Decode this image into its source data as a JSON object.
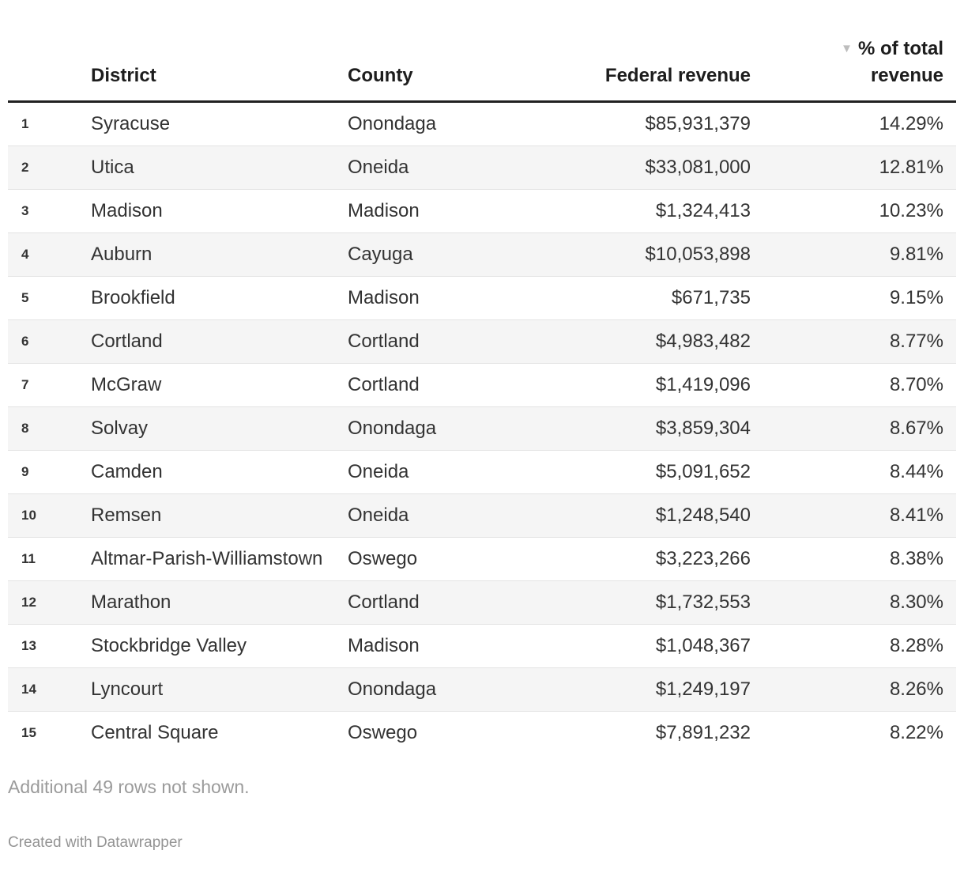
{
  "chart_data": {
    "type": "table",
    "columns": [
      "District",
      "County",
      "Federal revenue",
      "% of total revenue"
    ],
    "sort": {
      "column": "% of total revenue",
      "direction": "descending"
    },
    "rows": [
      {
        "rank": "1",
        "district": "Syracuse",
        "county": "Onondaga",
        "federal_revenue": "$85,931,379",
        "pct_of_total_revenue": "14.29%"
      },
      {
        "rank": "2",
        "district": "Utica",
        "county": "Oneida",
        "federal_revenue": "$33,081,000",
        "pct_of_total_revenue": "12.81%"
      },
      {
        "rank": "3",
        "district": "Madison",
        "county": "Madison",
        "federal_revenue": "$1,324,413",
        "pct_of_total_revenue": "10.23%"
      },
      {
        "rank": "4",
        "district": "Auburn",
        "county": "Cayuga",
        "federal_revenue": "$10,053,898",
        "pct_of_total_revenue": "9.81%"
      },
      {
        "rank": "5",
        "district": "Brookfield",
        "county": "Madison",
        "federal_revenue": "$671,735",
        "pct_of_total_revenue": "9.15%"
      },
      {
        "rank": "6",
        "district": "Cortland",
        "county": "Cortland",
        "federal_revenue": "$4,983,482",
        "pct_of_total_revenue": "8.77%"
      },
      {
        "rank": "7",
        "district": "McGraw",
        "county": "Cortland",
        "federal_revenue": "$1,419,096",
        "pct_of_total_revenue": "8.70%"
      },
      {
        "rank": "8",
        "district": "Solvay",
        "county": "Onondaga",
        "federal_revenue": "$3,859,304",
        "pct_of_total_revenue": "8.67%"
      },
      {
        "rank": "9",
        "district": "Camden",
        "county": "Oneida",
        "federal_revenue": "$5,091,652",
        "pct_of_total_revenue": "8.44%"
      },
      {
        "rank": "10",
        "district": "Remsen",
        "county": "Oneida",
        "federal_revenue": "$1,248,540",
        "pct_of_total_revenue": "8.41%"
      },
      {
        "rank": "11",
        "district": "Altmar-Parish-Williamstown",
        "county": "Oswego",
        "federal_revenue": "$3,223,266",
        "pct_of_total_revenue": "8.38%"
      },
      {
        "rank": "12",
        "district": "Marathon",
        "county": "Cortland",
        "federal_revenue": "$1,732,553",
        "pct_of_total_revenue": "8.30%"
      },
      {
        "rank": "13",
        "district": "Stockbridge Valley",
        "county": "Madison",
        "federal_revenue": "$1,048,367",
        "pct_of_total_revenue": "8.28%"
      },
      {
        "rank": "14",
        "district": "Lyncourt",
        "county": "Onondaga",
        "federal_revenue": "$1,249,197",
        "pct_of_total_revenue": "8.26%"
      },
      {
        "rank": "15",
        "district": "Central Square",
        "county": "Oswego",
        "federal_revenue": "$7,891,232",
        "pct_of_total_revenue": "8.22%"
      }
    ],
    "layout_hints": {
      "striped_rows": "even",
      "legend_position": "none",
      "grid": "horizontal-row-separators"
    }
  },
  "icons": {
    "sort_desc": "▼"
  },
  "footer": {
    "more_rows_note": "Additional 49 rows not shown.",
    "attribution": "Created with Datawrapper"
  },
  "colors": {
    "header_rule": "#212121",
    "row_stripe": "#f5f5f5",
    "row_separator": "#e3e3e3",
    "header_text": "#1d1d1d",
    "body_text": "#333333",
    "muted_text": "#9b9b9b",
    "sort_arrow": "#bdbdbd"
  }
}
